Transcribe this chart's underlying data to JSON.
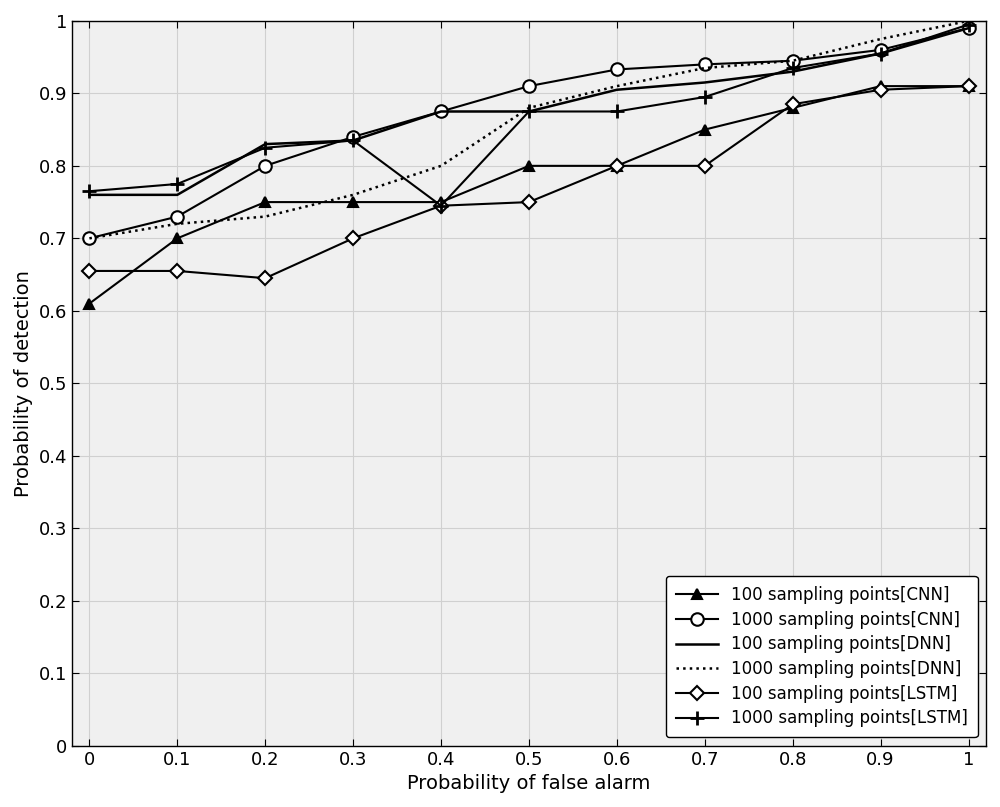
{
  "x": [
    0.0,
    0.1,
    0.2,
    0.3,
    0.4,
    0.5,
    0.6,
    0.7,
    0.8,
    0.9,
    1.0
  ],
  "series": {
    "cnn_100": {
      "y": [
        0.61,
        0.7,
        0.75,
        0.75,
        0.75,
        0.8,
        0.8,
        0.85,
        0.88,
        0.91,
        0.91
      ],
      "label": "100 sampling points[CNN]",
      "color": "#000000",
      "linestyle": "-",
      "marker": "^",
      "markersize": 7,
      "linewidth": 1.5
    },
    "cnn_1000": {
      "y": [
        0.7,
        0.73,
        0.8,
        0.84,
        0.875,
        0.91,
        0.933,
        0.94,
        0.945,
        0.96,
        0.99
      ],
      "label": "1000 sampling points[CNN]",
      "color": "#000000",
      "linestyle": "-",
      "marker": "o",
      "markersize": 9,
      "linewidth": 1.5,
      "markerfacecolor": "white"
    },
    "dnn_100": {
      "y": [
        0.76,
        0.76,
        0.83,
        0.835,
        0.875,
        0.875,
        0.905,
        0.915,
        0.93,
        0.955,
        0.99
      ],
      "label": "100 sampling points[DNN]",
      "color": "#000000",
      "linestyle": "-",
      "marker": "None",
      "linewidth": 1.8
    },
    "dnn_1000": {
      "y": [
        0.7,
        0.72,
        0.73,
        0.76,
        0.8,
        0.88,
        0.91,
        0.935,
        0.945,
        0.975,
        1.0
      ],
      "label": "1000 sampling points[DNN]",
      "color": "#000000",
      "linestyle": "dotted",
      "marker": "None",
      "linewidth": 1.8
    },
    "lstm_100": {
      "y": [
        0.655,
        0.655,
        0.645,
        0.7,
        0.745,
        0.75,
        0.8,
        0.8,
        0.885,
        0.905,
        0.91
      ],
      "label": "100 sampling points[LSTM]",
      "color": "#000000",
      "linestyle": "-",
      "marker": "D",
      "markersize": 7,
      "linewidth": 1.5,
      "markerfacecolor": "white"
    },
    "lstm_1000": {
      "y": [
        0.765,
        0.775,
        0.825,
        0.835,
        0.745,
        0.875,
        0.875,
        0.895,
        0.935,
        0.955,
        0.995
      ],
      "label": "1000 sampling points[LSTM]",
      "color": "#000000",
      "linestyle": "-",
      "marker": "+",
      "markersize": 10,
      "linewidth": 1.5,
      "markeredgewidth": 2.0
    }
  },
  "xlabel": "Probability of false alarm",
  "ylabel": "Probability of detection",
  "xlim": [
    -0.02,
    1.02
  ],
  "ylim": [
    0.0,
    1.0
  ],
  "xticks": [
    0.0,
    0.1,
    0.2,
    0.3,
    0.4,
    0.5,
    0.6,
    0.7,
    0.8,
    0.9,
    1.0
  ],
  "yticks": [
    0.0,
    0.1,
    0.2,
    0.3,
    0.4,
    0.5,
    0.6,
    0.7,
    0.8,
    0.9,
    1.0
  ],
  "grid_color": "#d0d0d0",
  "plot_bg_color": "#f0f0f0",
  "background_color": "#ffffff",
  "fontsize_label": 14,
  "fontsize_tick": 13,
  "fontsize_legend": 12
}
